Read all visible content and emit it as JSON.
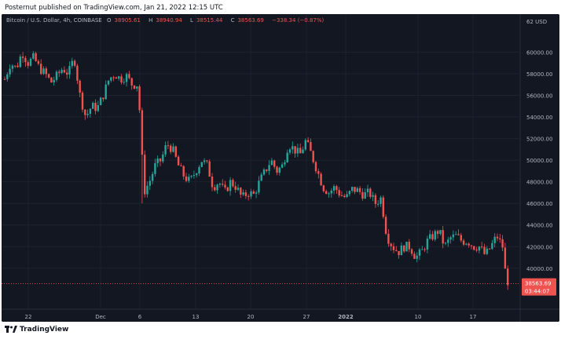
{
  "header": {
    "published_text": "Posternut published on TradingView.com, Jan 21, 2022 12:15 UTC"
  },
  "legend": {
    "symbol": "Bitcoin / U.S. Dollar, 4h, COINBASE",
    "o_label": "O",
    "o_value": "38905.61",
    "h_label": "H",
    "h_value": "38940.94",
    "l_label": "L",
    "l_value": "38515.44",
    "c_label": "C",
    "c_value": "38563.69",
    "change": "−338.34 (−0.87%)"
  },
  "footer": {
    "brand": "TradingView"
  },
  "colors": {
    "up": "#26a69a",
    "down": "#ef5350",
    "background": "#131722",
    "grid": "#1e222d",
    "axis_text": "#b2b5be"
  },
  "chart_data": {
    "type": "candlestick",
    "x_tick_labels": [
      "22",
      "Dec",
      "6",
      "13",
      "20",
      "27",
      "2022",
      "10",
      "17"
    ],
    "y_tick_labels": [
      "40000.00",
      "42000.00",
      "44000.00",
      "46000.00",
      "48000.00",
      "50000.00",
      "52000.00",
      "54000.00",
      "56000.00",
      "58000.00",
      "60000.00"
    ],
    "y_currency_label": "62 USD",
    "ylim": [
      36500,
      62500
    ],
    "last_price": "38563.69",
    "countdown": "03:44:07",
    "grid": true,
    "path": [
      [
        0,
        57500
      ],
      [
        1,
        59000
      ],
      [
        2,
        58500
      ],
      [
        3,
        60000
      ],
      [
        4,
        59000
      ],
      [
        5,
        59500
      ],
      [
        6,
        58500
      ],
      [
        7,
        58000
      ],
      [
        8,
        57200
      ],
      [
        9,
        57800
      ],
      [
        10,
        58500
      ],
      [
        11,
        58000
      ],
      [
        12,
        59500
      ],
      [
        13,
        56000
      ],
      [
        14,
        54000
      ],
      [
        15,
        55000
      ],
      [
        16,
        54800
      ],
      [
        17,
        56000
      ],
      [
        18,
        57500
      ],
      [
        19,
        58000
      ],
      [
        20,
        57500
      ],
      [
        21,
        57800
      ],
      [
        22,
        57000
      ],
      [
        23,
        57000
      ],
      [
        23.5,
        53000
      ],
      [
        24,
        47000
      ],
      [
        25,
        48000
      ],
      [
        26,
        49500
      ],
      [
        27,
        50000
      ],
      [
        28,
        51500
      ],
      [
        29,
        51000
      ],
      [
        30,
        49500
      ],
      [
        31,
        48500
      ],
      [
        32,
        48000
      ],
      [
        33,
        49000
      ],
      [
        34,
        50000
      ],
      [
        35,
        49500
      ],
      [
        36,
        47500
      ],
      [
        37,
        48000
      ],
      [
        38,
        47000
      ],
      [
        39,
        48000
      ],
      [
        40,
        47500
      ],
      [
        41,
        46500
      ],
      [
        42,
        47000
      ],
      [
        43,
        46800
      ],
      [
        44,
        48000
      ],
      [
        45,
        49000
      ],
      [
        46,
        50000
      ],
      [
        47,
        49000
      ],
      [
        48,
        49500
      ],
      [
        49,
        51500
      ],
      [
        50,
        51000
      ],
      [
        51,
        50500
      ],
      [
        52,
        51800
      ],
      [
        53,
        50500
      ],
      [
        54,
        49000
      ],
      [
        55,
        47500
      ],
      [
        56,
        47000
      ],
      [
        57,
        47500
      ],
      [
        58,
        46800
      ],
      [
        59,
        46500
      ],
      [
        60,
        47300
      ],
      [
        61,
        47200
      ],
      [
        62,
        46800
      ],
      [
        63,
        47000
      ],
      [
        64,
        46000
      ],
      [
        65,
        46500
      ],
      [
        66,
        43000
      ],
      [
        67,
        42000
      ],
      [
        68,
        41500
      ],
      [
        69,
        42000
      ],
      [
        70,
        42000
      ],
      [
        71,
        41000
      ],
      [
        72,
        41500
      ],
      [
        73,
        42500
      ],
      [
        74,
        43000
      ],
      [
        75,
        43500
      ],
      [
        76,
        42000
      ],
      [
        77,
        42800
      ],
      [
        78,
        43000
      ],
      [
        79,
        42500
      ],
      [
        80,
        42500
      ],
      [
        81,
        42000
      ],
      [
        82,
        42000
      ],
      [
        83,
        41200
      ],
      [
        84,
        42000
      ],
      [
        85,
        43000
      ],
      [
        86,
        42000
      ],
      [
        86.5,
        39500
      ],
      [
        87,
        38600
      ]
    ]
  }
}
